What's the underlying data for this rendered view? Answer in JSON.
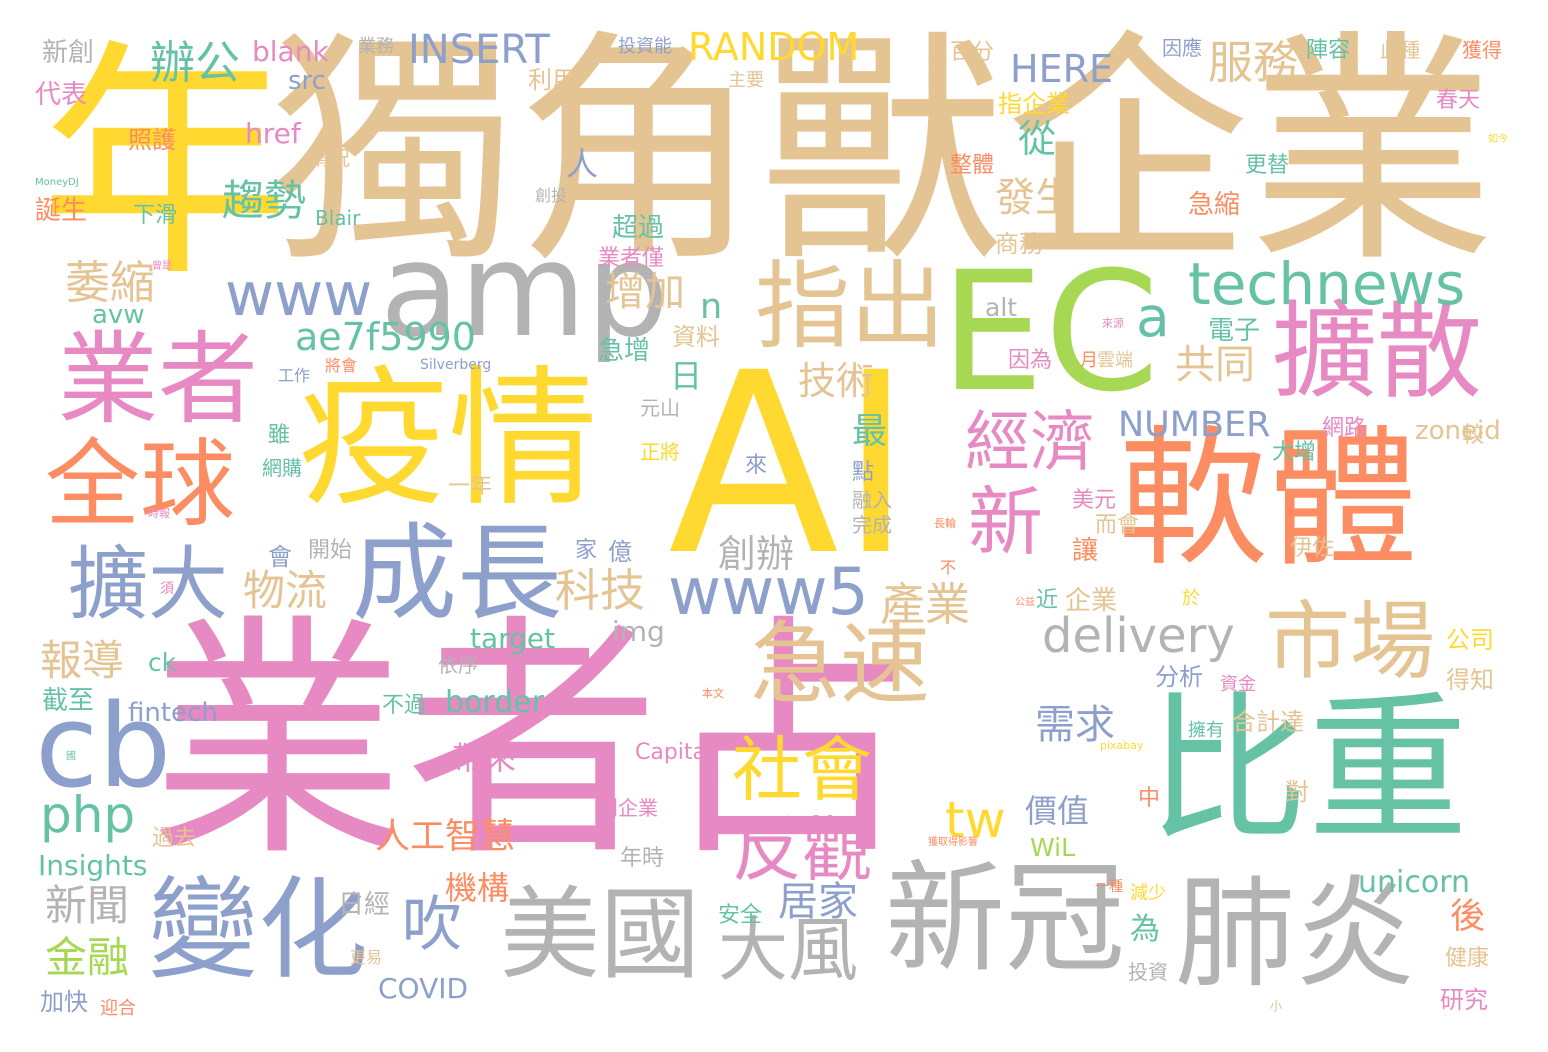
{
  "colors": {
    "yellow": "#ffd92f",
    "tan": "#e5c494",
    "pink": "#e78ac3",
    "orange": "#fc8d62",
    "teal": "#66c2a5",
    "blue": "#8da0cb",
    "green": "#a6d854",
    "gray": "#b3b3b3"
  },
  "words": [
    {
      "text": "年",
      "color": "yellow"
    },
    {
      "text": "獨角獸企業",
      "color": "tan"
    },
    {
      "text": "AI",
      "color": "yellow"
    },
    {
      "text": "業者占",
      "color": "pink"
    },
    {
      "text": "疫情",
      "color": "yellow"
    },
    {
      "text": "軟體",
      "color": "orange"
    },
    {
      "text": "比重",
      "color": "teal"
    },
    {
      "text": "EC",
      "color": "green"
    },
    {
      "text": "新冠",
      "color": "gray"
    },
    {
      "text": "肺炎",
      "color": "gray"
    },
    {
      "text": "美國",
      "color": "gray"
    },
    {
      "text": "業者",
      "color": "pink"
    },
    {
      "text": "amp",
      "color": "gray"
    },
    {
      "text": "指出",
      "color": "tan"
    },
    {
      "text": "擴散",
      "color": "pink"
    },
    {
      "text": "成長",
      "color": "blue"
    },
    {
      "text": "全球",
      "color": "orange"
    },
    {
      "text": "變化",
      "color": "blue"
    },
    {
      "text": "急速",
      "color": "tan"
    },
    {
      "text": "市場",
      "color": "tan"
    },
    {
      "text": "cb",
      "color": "blue"
    },
    {
      "text": "新",
      "color": "pink"
    },
    {
      "text": "擴大",
      "color": "blue"
    },
    {
      "text": "吹",
      "color": "blue"
    },
    {
      "text": "大風",
      "color": "gray"
    },
    {
      "text": "反觀",
      "color": "pink"
    },
    {
      "text": "社會",
      "color": "yellow"
    },
    {
      "text": "經濟",
      "color": "pink"
    },
    {
      "text": "www5",
      "color": "blue"
    },
    {
      "text": "technews",
      "color": "teal"
    },
    {
      "text": "www",
      "color": "blue"
    },
    {
      "text": "a",
      "color": "teal"
    },
    {
      "text": "delivery",
      "color": "gray"
    },
    {
      "text": "php",
      "color": "teal"
    },
    {
      "text": "tw",
      "color": "yellow"
    },
    {
      "text": "ae7f5990",
      "color": "teal"
    },
    {
      "text": "INSERT",
      "color": "blue"
    },
    {
      "text": "RANDOM",
      "color": "yellow"
    },
    {
      "text": "HERE",
      "color": "blue"
    },
    {
      "text": "NUMBER",
      "color": "blue"
    },
    {
      "text": "服務",
      "color": "tan"
    },
    {
      "text": "辦公",
      "color": "teal"
    },
    {
      "text": "趨勢",
      "color": "teal"
    },
    {
      "text": "萎縮",
      "color": "tan"
    },
    {
      "text": "n",
      "color": "teal"
    },
    {
      "text": "增加",
      "color": "tan"
    },
    {
      "text": "物流",
      "color": "tan"
    },
    {
      "text": "科技",
      "color": "tan"
    },
    {
      "text": "產業",
      "color": "tan"
    },
    {
      "text": "創辦",
      "color": "gray"
    },
    {
      "text": "需求",
      "color": "blue"
    },
    {
      "text": "居家",
      "color": "blue"
    },
    {
      "text": "新聞",
      "color": "gray"
    },
    {
      "text": "報導",
      "color": "tan"
    },
    {
      "text": "人工智慧",
      "color": "orange"
    },
    {
      "text": "金融",
      "color": "green"
    },
    {
      "text": "機構",
      "color": "orange"
    },
    {
      "text": "帶來",
      "color": "pink"
    },
    {
      "text": "技術",
      "color": "tan"
    },
    {
      "text": "發生",
      "color": "tan"
    },
    {
      "text": "共同",
      "color": "tan"
    },
    {
      "text": "從",
      "color": "teal"
    },
    {
      "text": "日",
      "color": "teal"
    },
    {
      "text": "最",
      "color": "teal"
    },
    {
      "text": "人",
      "color": "blue"
    },
    {
      "text": "為",
      "color": "teal"
    },
    {
      "text": "價值",
      "color": "blue"
    },
    {
      "text": "後",
      "color": "orange"
    },
    {
      "text": "unicorn",
      "color": "teal"
    },
    {
      "text": "border",
      "color": "teal"
    },
    {
      "text": "target",
      "color": "teal"
    },
    {
      "text": "img",
      "color": "gray"
    },
    {
      "text": "blank",
      "color": "pink"
    },
    {
      "text": "href",
      "color": "pink"
    },
    {
      "text": "src",
      "color": "blue"
    },
    {
      "text": "fintech",
      "color": "blue"
    },
    {
      "text": "Insights",
      "color": "teal"
    },
    {
      "text": "COVID",
      "color": "blue"
    },
    {
      "text": "WiL",
      "color": "green"
    },
    {
      "text": "zoneid",
      "color": "tan"
    },
    {
      "text": "alt",
      "color": "gray"
    },
    {
      "text": "avw",
      "color": "teal"
    },
    {
      "text": "ck",
      "color": "teal"
    },
    {
      "text": "Capital",
      "color": "pink"
    },
    {
      "text": "Blair",
      "color": "teal"
    },
    {
      "text": "Silverberg",
      "color": "blue"
    },
    {
      "text": "MoneyDJ",
      "color": "teal"
    },
    {
      "text": "pixabay",
      "color": "yellow"
    },
    {
      "text": "新創",
      "color": "gray"
    },
    {
      "text": "代表",
      "color": "pink"
    },
    {
      "text": "照護",
      "color": "orange"
    },
    {
      "text": "情況",
      "color": "tan"
    },
    {
      "text": "誕生",
      "color": "orange"
    },
    {
      "text": "下滑",
      "color": "teal"
    },
    {
      "text": "業務",
      "color": "gray"
    },
    {
      "text": "投資能",
      "color": "blue"
    },
    {
      "text": "利用",
      "color": "tan"
    },
    {
      "text": "主要",
      "color": "tan"
    },
    {
      "text": "百分",
      "color": "tan"
    },
    {
      "text": "指企業",
      "color": "yellow"
    },
    {
      "text": "整體",
      "color": "orange"
    },
    {
      "text": "創投",
      "color": "gray"
    },
    {
      "text": "超過",
      "color": "teal"
    },
    {
      "text": "業者僅",
      "color": "pink"
    },
    {
      "text": "商務",
      "color": "tan"
    },
    {
      "text": "資料",
      "color": "tan"
    },
    {
      "text": "急增",
      "color": "teal"
    },
    {
      "text": "元山",
      "color": "gray"
    },
    {
      "text": "正將",
      "color": "yellow"
    },
    {
      "text": "一年",
      "color": "tan"
    },
    {
      "text": "來",
      "color": "blue"
    },
    {
      "text": "點",
      "color": "blue"
    },
    {
      "text": "融入",
      "color": "gray"
    },
    {
      "text": "完成",
      "color": "gray"
    },
    {
      "text": "會",
      "color": "blue"
    },
    {
      "text": "開始",
      "color": "gray"
    },
    {
      "text": "家",
      "color": "blue"
    },
    {
      "text": "億",
      "color": "blue"
    },
    {
      "text": "工作",
      "color": "blue"
    },
    {
      "text": "將會",
      "color": "orange"
    },
    {
      "text": "雖",
      "color": "teal"
    },
    {
      "text": "網購",
      "color": "teal"
    },
    {
      "text": "時報",
      "color": "pink"
    },
    {
      "text": "須",
      "color": "pink"
    },
    {
      "text": "日經",
      "color": "gray"
    },
    {
      "text": "不過",
      "color": "teal"
    },
    {
      "text": "依序",
      "color": "gray"
    },
    {
      "text": "年時",
      "color": "gray"
    },
    {
      "text": "創企業",
      "color": "pink"
    },
    {
      "text": "過去",
      "color": "tan"
    },
    {
      "text": "截至",
      "color": "teal"
    },
    {
      "text": "加快",
      "color": "blue"
    },
    {
      "text": "迎合",
      "color": "orange"
    },
    {
      "text": "更易",
      "color": "tan"
    },
    {
      "text": "因應",
      "color": "blue"
    },
    {
      "text": "陣容",
      "color": "teal"
    },
    {
      "text": "此種",
      "color": "tan"
    },
    {
      "text": "獲得",
      "color": "orange"
    },
    {
      "text": "春天",
      "color": "pink"
    },
    {
      "text": "更替",
      "color": "teal"
    },
    {
      "text": "急縮",
      "color": "orange"
    },
    {
      "text": "電子",
      "color": "teal"
    },
    {
      "text": "雲端",
      "color": "tan"
    },
    {
      "text": "月",
      "color": "orange"
    },
    {
      "text": "因為",
      "color": "pink"
    },
    {
      "text": "網路",
      "color": "pink"
    },
    {
      "text": "較",
      "color": "tan"
    },
    {
      "text": "大增",
      "color": "teal"
    },
    {
      "text": "美元",
      "color": "pink"
    },
    {
      "text": "而會",
      "color": "tan"
    },
    {
      "text": "伊佐",
      "color": "tan"
    },
    {
      "text": "讓",
      "color": "orange"
    },
    {
      "text": "企業",
      "color": "tan"
    },
    {
      "text": "近",
      "color": "teal"
    },
    {
      "text": "於",
      "color": "yellow"
    },
    {
      "text": "公司",
      "color": "yellow"
    },
    {
      "text": "得知",
      "color": "tan"
    },
    {
      "text": "分析",
      "color": "blue"
    },
    {
      "text": "資金",
      "color": "pink"
    },
    {
      "text": "合計達",
      "color": "tan"
    },
    {
      "text": "擁有",
      "color": "teal"
    },
    {
      "text": "對",
      "color": "tan"
    },
    {
      "text": "中",
      "color": "orange"
    },
    {
      "text": "健康",
      "color": "tan"
    },
    {
      "text": "研究",
      "color": "pink"
    },
    {
      "text": "安全",
      "color": "teal"
    },
    {
      "text": "投資",
      "color": "gray"
    },
    {
      "text": "減少",
      "color": "yellow"
    },
    {
      "text": "一種",
      "color": "orange"
    },
    {
      "text": "小",
      "color": "tan"
    },
    {
      "text": "不",
      "color": "orange"
    },
    {
      "text": "長輪",
      "color": "orange"
    },
    {
      "text": "本文",
      "color": "orange"
    },
    {
      "text": "獲取得影響",
      "color": "orange"
    },
    {
      "text": "國",
      "color": "teal"
    },
    {
      "text": "來源",
      "color": "pink"
    },
    {
      "text": "如今",
      "color": "yellow"
    },
    {
      "text": "公益",
      "color": "orange"
    },
    {
      "text": "曾是",
      "color": "pink"
    }
  ]
}
